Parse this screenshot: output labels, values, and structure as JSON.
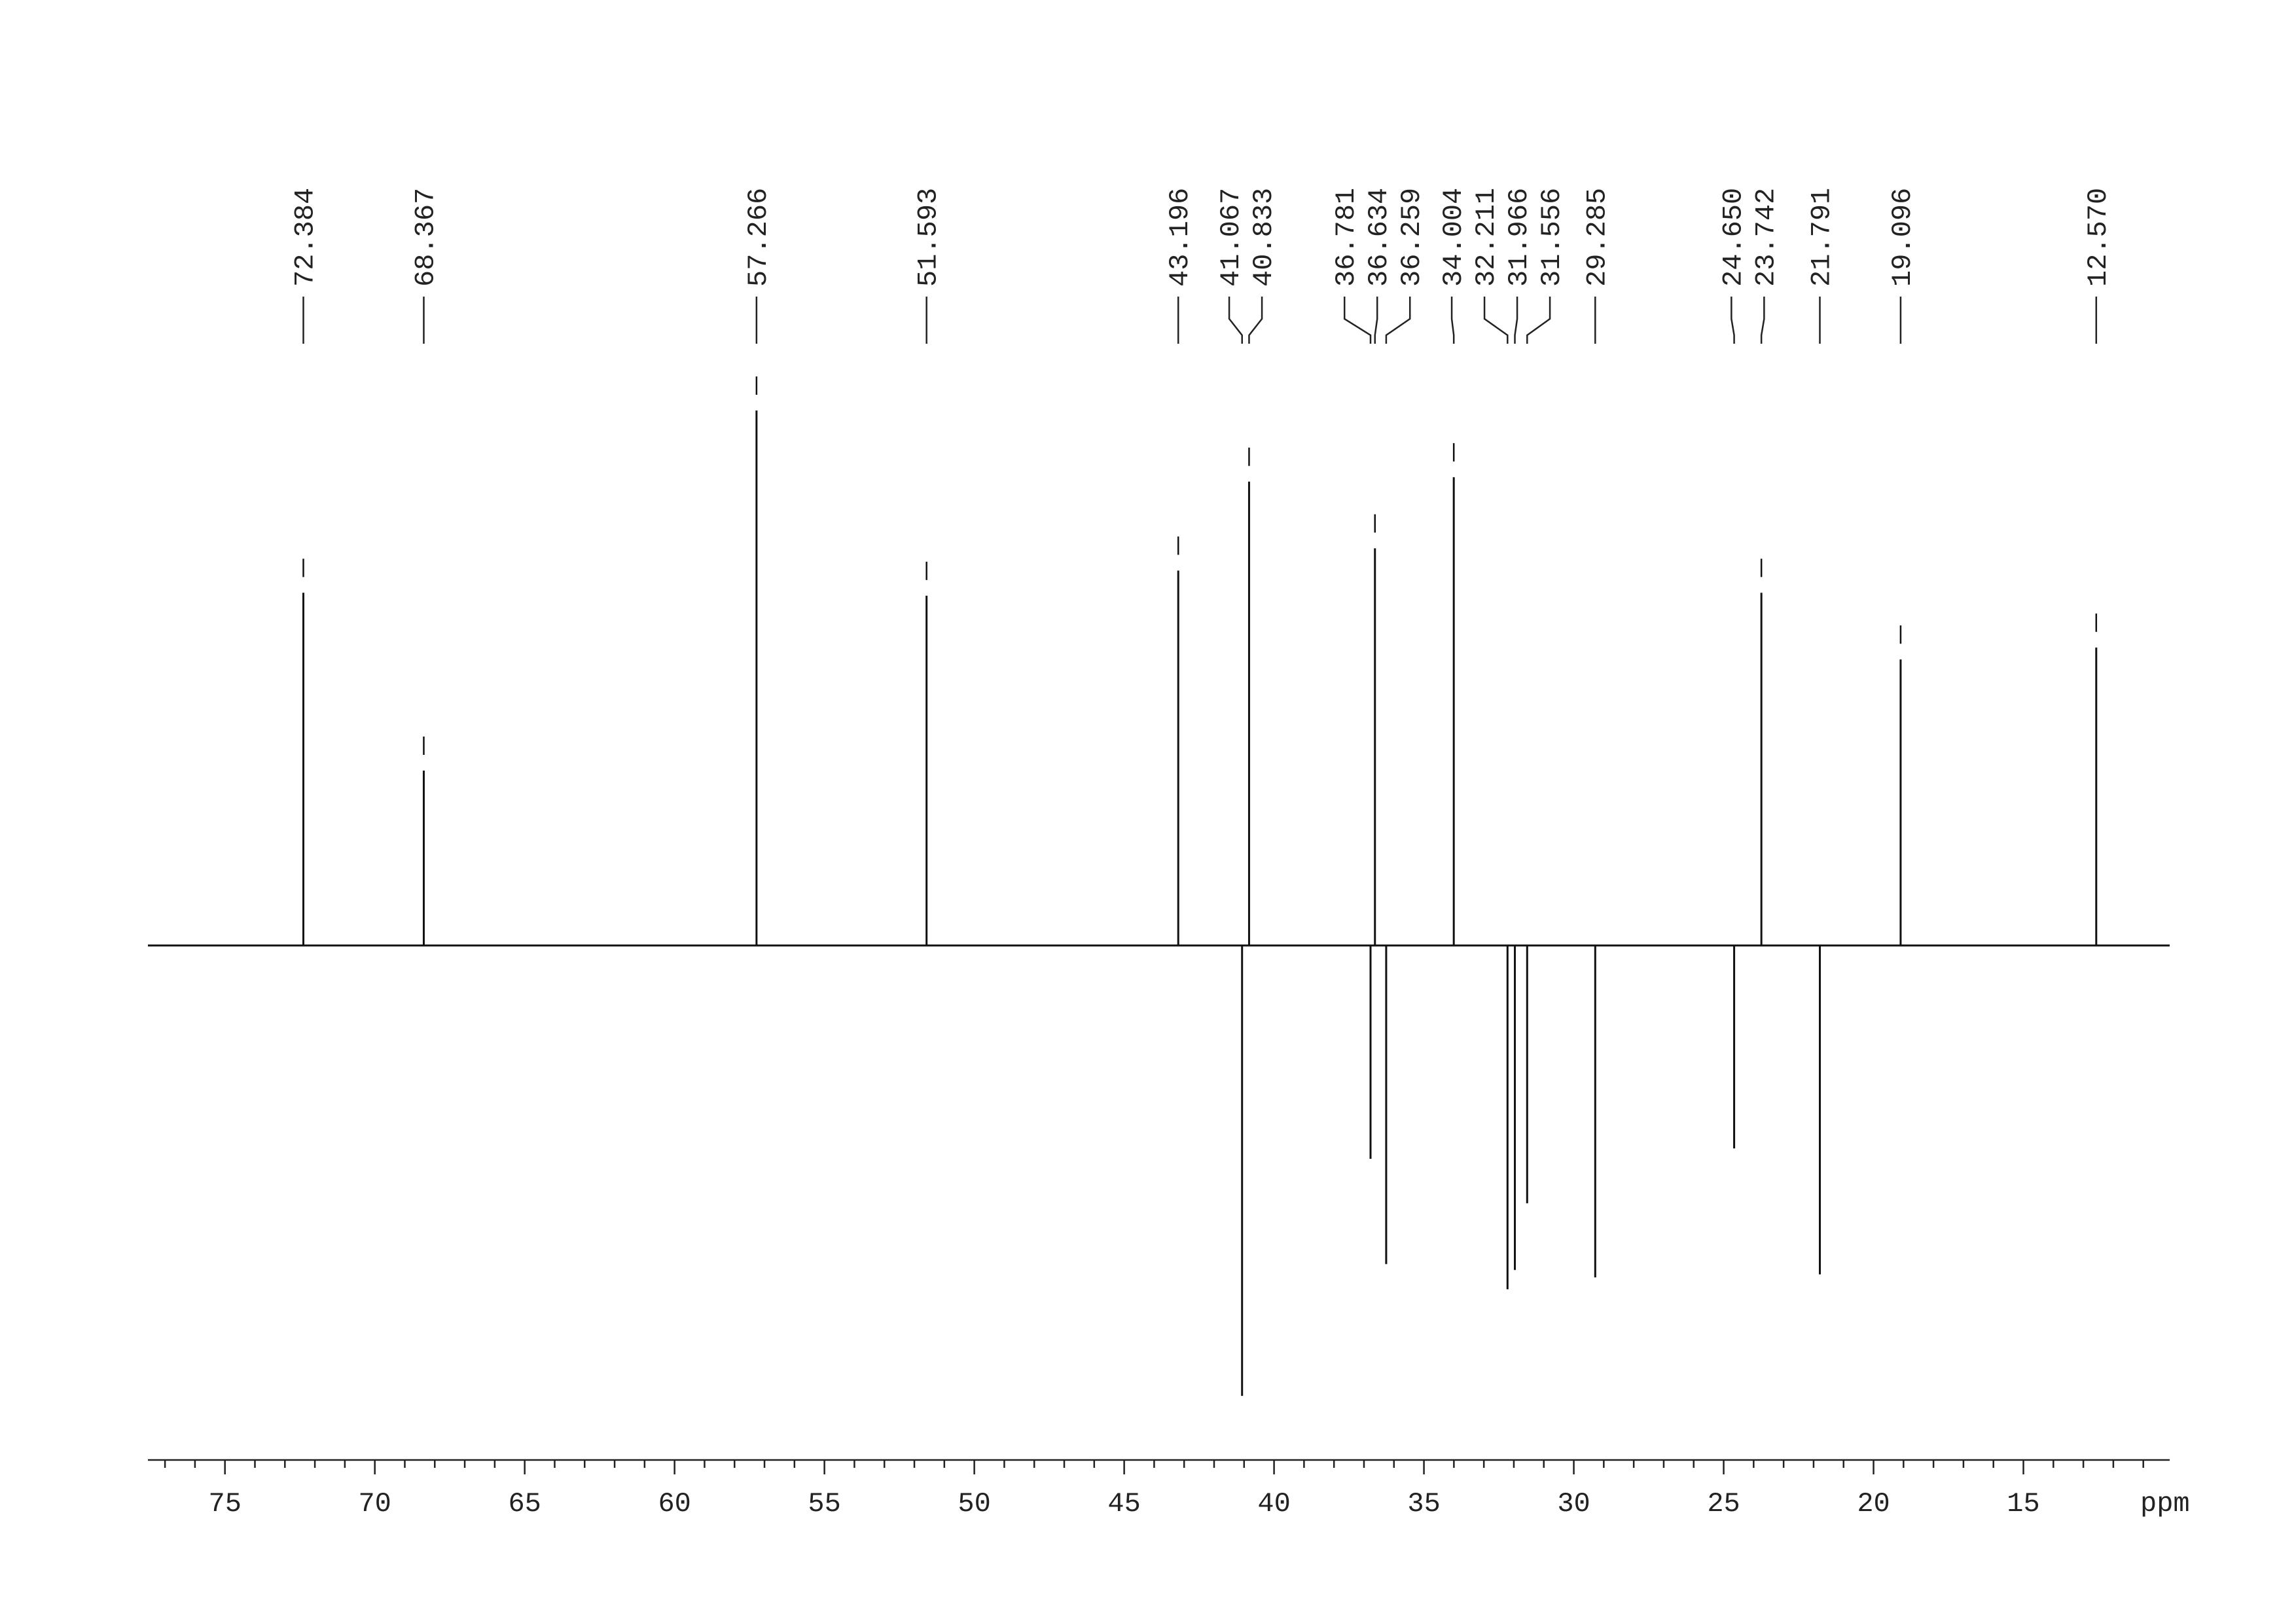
{
  "chart_data": {
    "type": "spectrum",
    "x_label": "ppm",
    "x": [
      72.384,
      68.367,
      57.266,
      51.593,
      43.196,
      41.067,
      40.833,
      36.781,
      36.634,
      36.259,
      34.004,
      32.211,
      31.966,
      31.556,
      29.285,
      24.65,
      23.742,
      21.791,
      19.096,
      12.57
    ],
    "x_labels": [
      "72.384",
      "68.367",
      "57.266",
      "51.593",
      "43.196",
      "41.067",
      "40.833",
      "36.781",
      "36.634",
      "36.259",
      "34.004",
      "32.211",
      "31.966",
      "31.556",
      "29.285",
      "24.650",
      "23.742",
      "21.791",
      "19.096",
      "12.570"
    ],
    "values": [
      238,
      118,
      361,
      236,
      253,
      -304,
      313,
      -144,
      268,
      -215,
      316,
      -232,
      -219,
      -174,
      -224,
      -137,
      238,
      -222,
      193,
      201
    ],
    "color": "#111111",
    "xlim": [
      77.57,
      10.12
    ],
    "xticks": [
      75,
      70,
      65,
      60,
      55,
      50,
      45,
      40,
      35,
      30,
      25,
      20,
      15
    ],
    "ylim": [
      -330,
      380
    ]
  }
}
